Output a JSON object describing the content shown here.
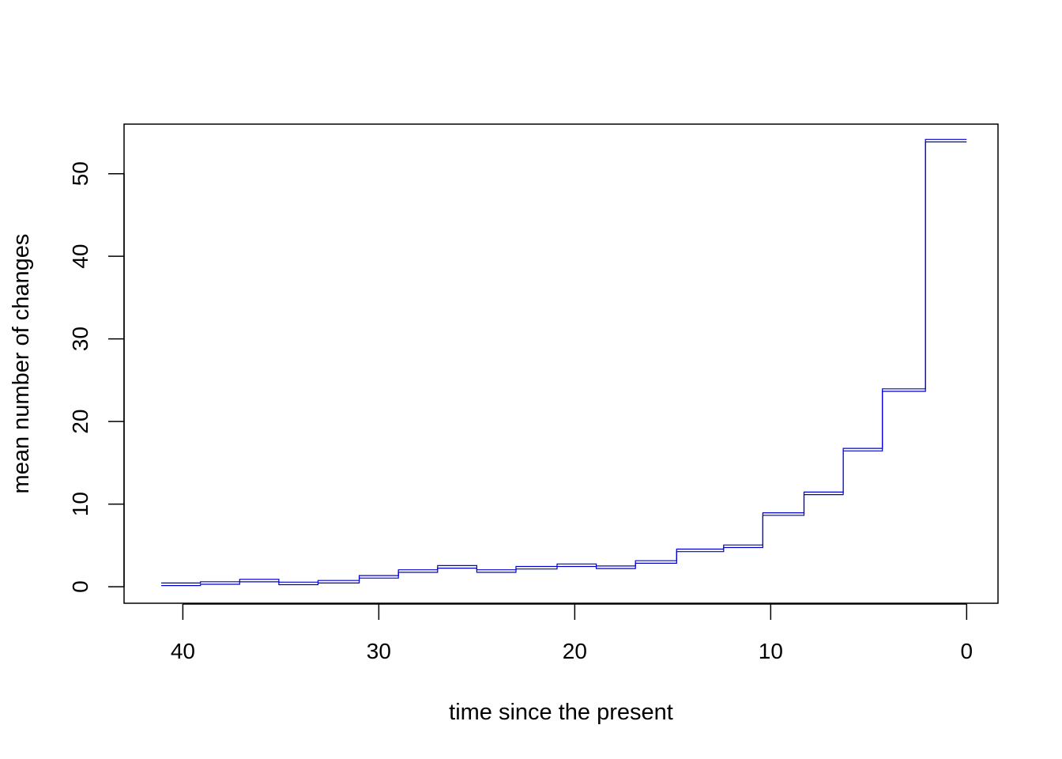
{
  "chart_data": {
    "type": "line",
    "title": "",
    "xlabel": "time since the present",
    "ylabel": "mean number of changes",
    "xlim": [
      43,
      -1.6
    ],
    "ylim": [
      -2,
      56
    ],
    "x_ticks": [
      40,
      30,
      20,
      10,
      0
    ],
    "y_ticks": [
      0,
      10,
      20,
      30,
      40,
      50
    ],
    "grid": false,
    "legend": "none",
    "colors": {
      "series": "#0000cc",
      "axes": "#000000"
    },
    "series": [
      {
        "x": [
          41.1,
          39.1,
          37.1,
          35.1,
          33.1,
          31.0,
          29.0,
          27.0,
          25.0,
          23.0,
          20.9,
          18.9,
          16.9,
          14.8,
          12.4,
          10.4,
          8.3,
          6.3,
          4.3,
          2.1,
          0.0
        ],
        "y": [
          0.3,
          0.45,
          0.75,
          0.4,
          0.6,
          1.2,
          1.9,
          2.4,
          1.9,
          2.3,
          2.6,
          2.35,
          3.0,
          4.4,
          4.9,
          8.8,
          11.3,
          16.6,
          23.8,
          54.0,
          54.0
        ]
      }
    ]
  }
}
